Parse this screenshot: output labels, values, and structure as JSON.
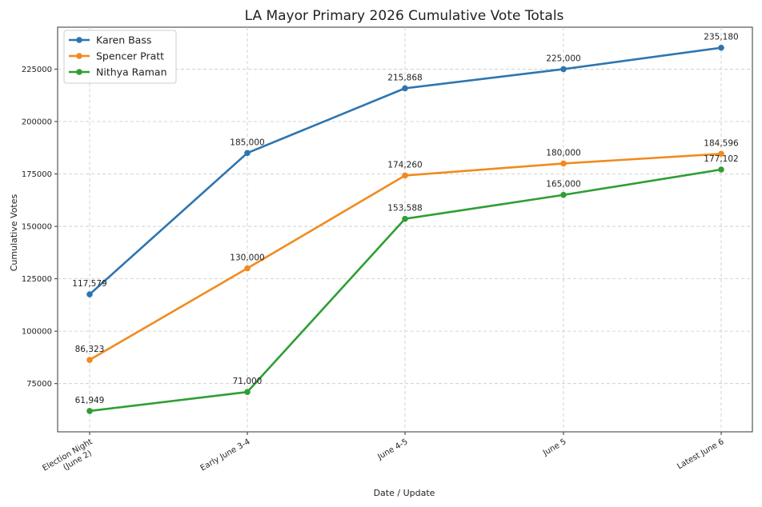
{
  "chart_data": {
    "type": "line",
    "title": "LA Mayor Primary 2026 Cumulative Vote Totals",
    "xlabel": "Date / Update",
    "ylabel": "Cumulative Votes",
    "categories": [
      "Election Night\n(June 2)",
      "Early June 3-4",
      "June 4-5",
      "June 5",
      "Latest June 6"
    ],
    "y_ticks": [
      75000,
      100000,
      125000,
      150000,
      175000,
      200000,
      225000
    ],
    "ylim": [
      52000,
      245000
    ],
    "grid": true,
    "grid_style": "dashed",
    "legend_position": "top-left",
    "series": [
      {
        "name": "Karen Bass",
        "color": "#2e75b0",
        "values": [
          117579,
          185000,
          215868,
          225000,
          235180
        ],
        "labels": [
          "117,579",
          "185,000",
          "215,868",
          "225,000",
          "235,180"
        ]
      },
      {
        "name": "Spencer Pratt",
        "color": "#f28a1e",
        "values": [
          86323,
          130000,
          174260,
          180000,
          184596
        ],
        "labels": [
          "86,323",
          "130,000",
          "174,260",
          "180,000",
          "184,596"
        ]
      },
      {
        "name": "Nithya Raman",
        "color": "#2f9e34",
        "values": [
          61949,
          71000,
          153588,
          165000,
          177102
        ],
        "labels": [
          "61,949",
          "71,000",
          "153,588",
          "165,000",
          "177,102"
        ]
      }
    ]
  }
}
